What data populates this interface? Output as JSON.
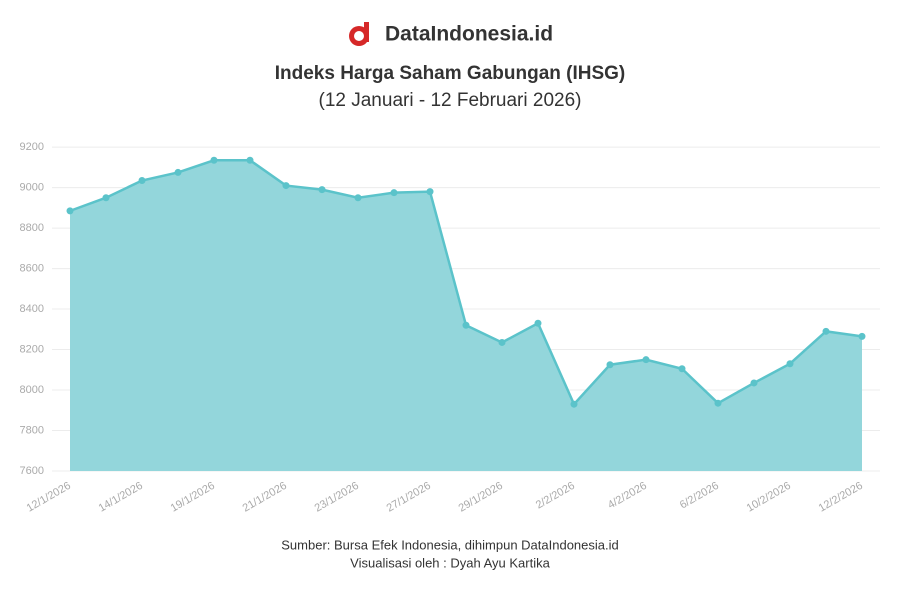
{
  "brand": "DataIndonesia.id",
  "chart_data": {
    "type": "area",
    "title": "Indeks Harga Saham Gabungan (IHSG)",
    "subtitle": "(12 Januari - 12 Februari 2026)",
    "categories": [
      "12/1/2026",
      null,
      "14/1/2026",
      null,
      "19/1/2026",
      null,
      "21/1/2026",
      null,
      "23/1/2026",
      null,
      "27/1/2026",
      null,
      "29/1/2026",
      null,
      "2/2/2026",
      null,
      "4/2/2026",
      null,
      "6/2/2026",
      null,
      "10/2/2026",
      null,
      "12/2/2026"
    ],
    "values": [
      8885,
      8950,
      9035,
      9075,
      9135,
      9135,
      9010,
      8990,
      8950,
      8975,
      8980,
      8320,
      8235,
      8330,
      7930,
      8125,
      8150,
      8105,
      7935,
      8035,
      8130,
      8290,
      8265
    ],
    "color": "#5bc3ca",
    "fill_color": "#93d6db",
    "ylim": [
      7600,
      9250
    ],
    "yticks": [
      7600,
      7800,
      8000,
      8200,
      8400,
      8600,
      8800,
      9000,
      9200
    ],
    "grid": true,
    "source": "Sumber: Bursa Efek Indonesia, dihimpun DataIndonesia.id",
    "credit": "Visualisasi oleh : Dyah Ayu Kartika"
  }
}
